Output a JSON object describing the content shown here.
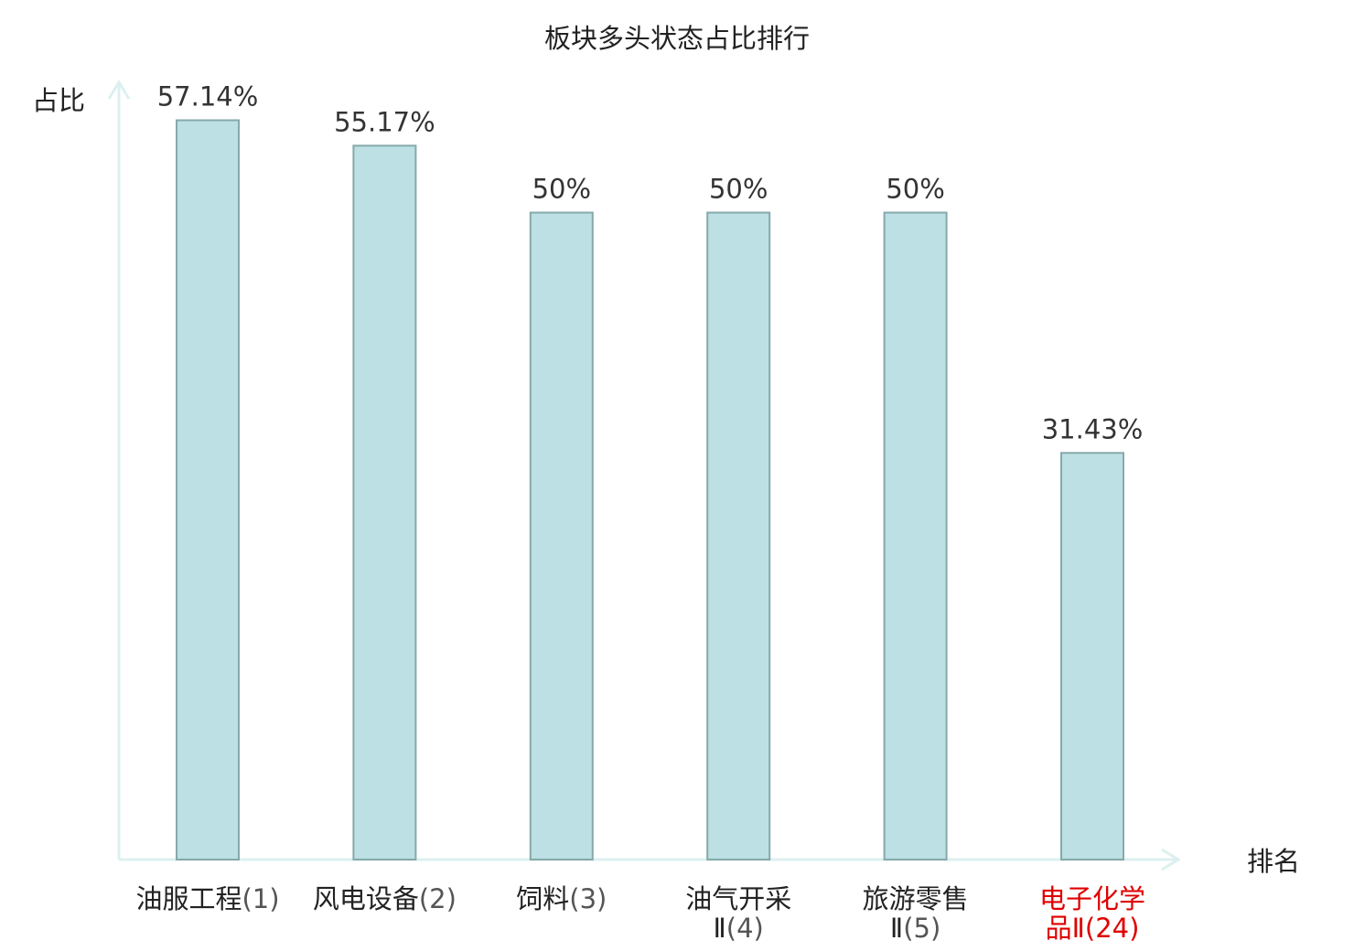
{
  "chart_data": {
    "type": "bar",
    "title": "板块多头状态占比排行",
    "ylabel": "占比",
    "xlabel": "排名",
    "ylim": [
      0,
      60
    ],
    "grid": false,
    "categories": [
      {
        "name_lines": [
          "油服工程"
        ],
        "rank": "(1)",
        "highlight": false
      },
      {
        "name_lines": [
          "风电设备"
        ],
        "rank": "(2)",
        "highlight": false
      },
      {
        "name_lines": [
          "饲料"
        ],
        "rank": "(3)",
        "highlight": false
      },
      {
        "name_lines": [
          "油气开采",
          "Ⅱ"
        ],
        "rank": "(4)",
        "highlight": false
      },
      {
        "name_lines": [
          "旅游零售",
          "Ⅱ"
        ],
        "rank": "(5)",
        "highlight": false
      },
      {
        "name_lines": [
          "电子化学",
          "品Ⅱ"
        ],
        "rank": "(24)",
        "highlight": true
      }
    ],
    "values": [
      57.14,
      55.17,
      50,
      50,
      50,
      31.43
    ],
    "value_labels": [
      "57.14%",
      "55.17%",
      "50%",
      "50%",
      "50%",
      "31.43%"
    ],
    "colors": {
      "bar_fill": "#bce0e3",
      "bar_stroke": "#86a9ab",
      "axis": "#dcf0ef",
      "highlight_text": "#e00000",
      "text": "#222222"
    }
  }
}
